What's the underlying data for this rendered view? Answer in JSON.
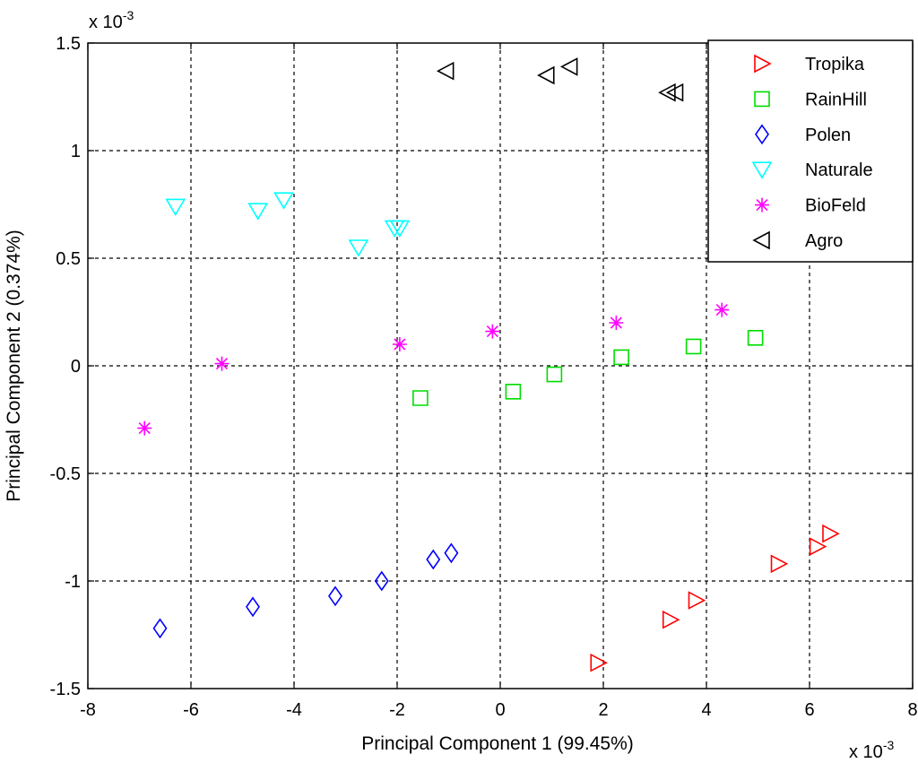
{
  "chart_data": {
    "type": "scatter",
    "xlabel": "Principal Component 1 (99.45%)",
    "ylabel": "Principal Component 2 (0.374%)",
    "x_multiplier": "x 10",
    "x_multiplier_exp": "-3",
    "y_multiplier": "x 10",
    "y_multiplier_exp": "-3",
    "xlim": [
      -8,
      8
    ],
    "ylim": [
      -1.5,
      1.5
    ],
    "xticks": [
      -8,
      -6,
      -4,
      -2,
      0,
      2,
      4,
      6,
      8
    ],
    "yticks": [
      -1.5,
      -1,
      -0.5,
      0,
      0.5,
      1,
      1.5
    ],
    "xtick_labels": [
      "-8",
      "-6",
      "-4",
      "-2",
      "0",
      "2",
      "4",
      "6",
      "8"
    ],
    "ytick_labels": [
      "-1.5",
      "-1",
      "-0.5",
      "0",
      "0.5",
      "1",
      "1.5"
    ],
    "grid": true,
    "legend_position": "top-right",
    "series": [
      {
        "name": "Tropika",
        "marker": "triangle-right",
        "color": "#ff0000",
        "points": [
          [
            1.9,
            -1.38
          ],
          [
            3.3,
            -1.18
          ],
          [
            3.8,
            -1.09
          ],
          [
            5.4,
            -0.92
          ],
          [
            6.15,
            -0.84
          ],
          [
            6.4,
            -0.78
          ]
        ]
      },
      {
        "name": "RainHill",
        "marker": "square",
        "color": "#00dd00",
        "points": [
          [
            -1.55,
            -0.15
          ],
          [
            0.25,
            -0.12
          ],
          [
            1.05,
            -0.04
          ],
          [
            2.35,
            0.04
          ],
          [
            3.75,
            0.09
          ],
          [
            4.95,
            0.13
          ]
        ]
      },
      {
        "name": "Polen",
        "marker": "diamond",
        "color": "#0000ff",
        "points": [
          [
            -6.6,
            -1.22
          ],
          [
            -4.8,
            -1.12
          ],
          [
            -3.2,
            -1.07
          ],
          [
            -2.3,
            -1.0
          ],
          [
            -1.3,
            -0.9
          ],
          [
            -0.95,
            -0.87
          ]
        ]
      },
      {
        "name": "Naturale",
        "marker": "triangle-down",
        "color": "#00ffff",
        "points": [
          [
            -6.3,
            0.74
          ],
          [
            -4.7,
            0.72
          ],
          [
            -4.2,
            0.77
          ],
          [
            -2.75,
            0.55
          ],
          [
            -2.05,
            0.64
          ],
          [
            -1.95,
            0.64
          ]
        ]
      },
      {
        "name": "BioFeld",
        "marker": "asterisk",
        "color": "#ff00ff",
        "points": [
          [
            -6.9,
            -0.29
          ],
          [
            -5.4,
            0.01
          ],
          [
            -1.95,
            0.1
          ],
          [
            -0.15,
            0.16
          ],
          [
            2.25,
            0.2
          ],
          [
            4.3,
            0.26
          ]
        ]
      },
      {
        "name": "Agro",
        "marker": "triangle-left",
        "color": "#000000",
        "points": [
          [
            -1.05,
            1.37
          ],
          [
            0.9,
            1.35
          ],
          [
            1.35,
            1.39
          ],
          [
            3.25,
            1.27
          ],
          [
            3.4,
            1.27
          ]
        ]
      }
    ]
  }
}
